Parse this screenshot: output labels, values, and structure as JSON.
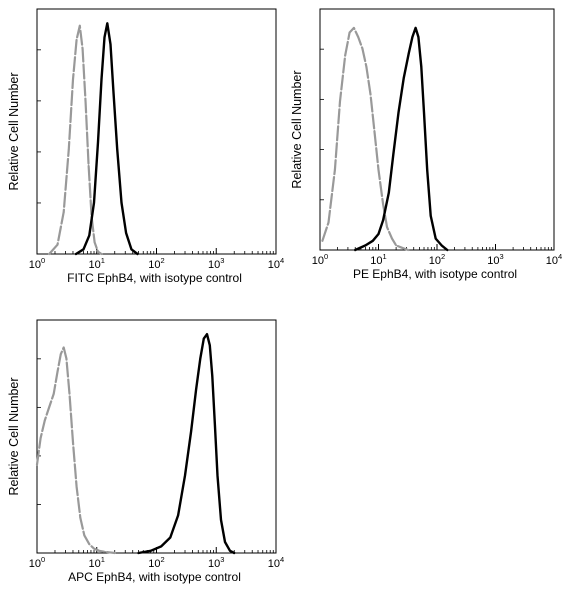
{
  "chart_data": [
    {
      "type": "line",
      "panel": "top-left",
      "xscale": "log",
      "xlim": [
        1,
        10000
      ],
      "ylim": [
        0,
        1
      ],
      "grid": false,
      "xlabel": "FITC  EphB4,  with isotype control",
      "ylabel": "Relative Cell Number",
      "xticks": [
        {
          "base": "10",
          "exp": "0"
        },
        {
          "base": "10",
          "exp": "1"
        },
        {
          "base": "10",
          "exp": "2"
        },
        {
          "base": "10",
          "exp": "3"
        },
        {
          "base": "10",
          "exp": "4"
        }
      ],
      "series": [
        {
          "color": "#999999",
          "dash": true,
          "x": [
            1.6,
            2.2,
            2.8,
            3.4,
            4.0,
            4.6,
            5.2,
            5.8,
            6.5,
            7.3,
            8.2,
            9.2,
            10.5,
            12
          ],
          "y": [
            0.0,
            0.04,
            0.18,
            0.45,
            0.75,
            0.92,
            0.98,
            0.88,
            0.65,
            0.38,
            0.16,
            0.05,
            0.01,
            0.0
          ]
        },
        {
          "color": "#000000",
          "dash": false,
          "x": [
            4.5,
            6,
            7.5,
            9,
            10.5,
            12,
            13.5,
            15,
            17,
            19,
            22,
            26,
            31,
            38,
            48
          ],
          "y": [
            0.0,
            0.02,
            0.08,
            0.22,
            0.48,
            0.75,
            0.93,
            0.99,
            0.9,
            0.7,
            0.45,
            0.22,
            0.09,
            0.02,
            0.0
          ]
        }
      ]
    },
    {
      "type": "line",
      "panel": "top-right",
      "xscale": "log",
      "xlim": [
        1,
        10000
      ],
      "ylim": [
        0,
        1
      ],
      "grid": false,
      "xlabel": "PE  EphB4,  with isotype control",
      "ylabel": "Relative Cell Number",
      "xticks": [
        {
          "base": "10",
          "exp": "0"
        },
        {
          "base": "10",
          "exp": "1"
        },
        {
          "base": "10",
          "exp": "2"
        },
        {
          "base": "10",
          "exp": "3"
        },
        {
          "base": "10",
          "exp": "4"
        }
      ],
      "series": [
        {
          "color": "#999999",
          "dash": true,
          "x": [
            1.1,
            1.4,
            1.8,
            2.2,
            2.7,
            3.2,
            3.8,
            4.5,
            5.3,
            6.2,
            7.3,
            8.5,
            10,
            12,
            14,
            17,
            20,
            25,
            32
          ],
          "y": [
            0.04,
            0.12,
            0.35,
            0.65,
            0.85,
            0.95,
            0.97,
            0.93,
            0.88,
            0.8,
            0.68,
            0.52,
            0.35,
            0.2,
            0.1,
            0.05,
            0.02,
            0.01,
            0.0
          ]
        },
        {
          "color": "#000000",
          "dash": false,
          "x": [
            4,
            6,
            8,
            10,
            12,
            15,
            18,
            22,
            27,
            33,
            38,
            43,
            48,
            54,
            60,
            68,
            78,
            95,
            120,
            150
          ],
          "y": [
            0.0,
            0.02,
            0.04,
            0.07,
            0.13,
            0.25,
            0.42,
            0.6,
            0.75,
            0.86,
            0.93,
            0.97,
            0.93,
            0.8,
            0.6,
            0.35,
            0.15,
            0.05,
            0.02,
            0.0
          ]
        }
      ]
    },
    {
      "type": "line",
      "panel": "bottom-left",
      "xscale": "log",
      "xlim": [
        1,
        10000
      ],
      "ylim": [
        0,
        1
      ],
      "grid": false,
      "xlabel": "APC EphB4, with isotype control",
      "ylabel": "Relative Cell Number",
      "xticks": [
        {
          "base": "10",
          "exp": "0"
        },
        {
          "base": "10",
          "exp": "1"
        },
        {
          "base": "10",
          "exp": "2"
        },
        {
          "base": "10",
          "exp": "3"
        },
        {
          "base": "10",
          "exp": "4"
        }
      ],
      "series": [
        {
          "color": "#999999",
          "dash": true,
          "x": [
            1.0,
            1.15,
            1.35,
            1.6,
            1.9,
            2.2,
            2.5,
            2.8,
            3.1,
            3.5,
            4.0,
            4.6,
            5.3,
            6.2,
            7.5,
            9,
            11,
            14,
            20
          ],
          "y": [
            0.4,
            0.52,
            0.6,
            0.66,
            0.72,
            0.82,
            0.9,
            0.93,
            0.88,
            0.72,
            0.5,
            0.3,
            0.16,
            0.08,
            0.04,
            0.02,
            0.01,
            0.005,
            0.0
          ]
        },
        {
          "color": "#000000",
          "dash": false,
          "x": [
            50,
            80,
            120,
            170,
            230,
            300,
            380,
            460,
            540,
            620,
            700,
            780,
            860,
            950,
            1050,
            1200,
            1400,
            1700,
            2000
          ],
          "y": [
            0.0,
            0.01,
            0.03,
            0.07,
            0.17,
            0.35,
            0.55,
            0.74,
            0.88,
            0.97,
            0.99,
            0.94,
            0.8,
            0.58,
            0.35,
            0.15,
            0.05,
            0.01,
            0.0
          ]
        }
      ]
    }
  ]
}
